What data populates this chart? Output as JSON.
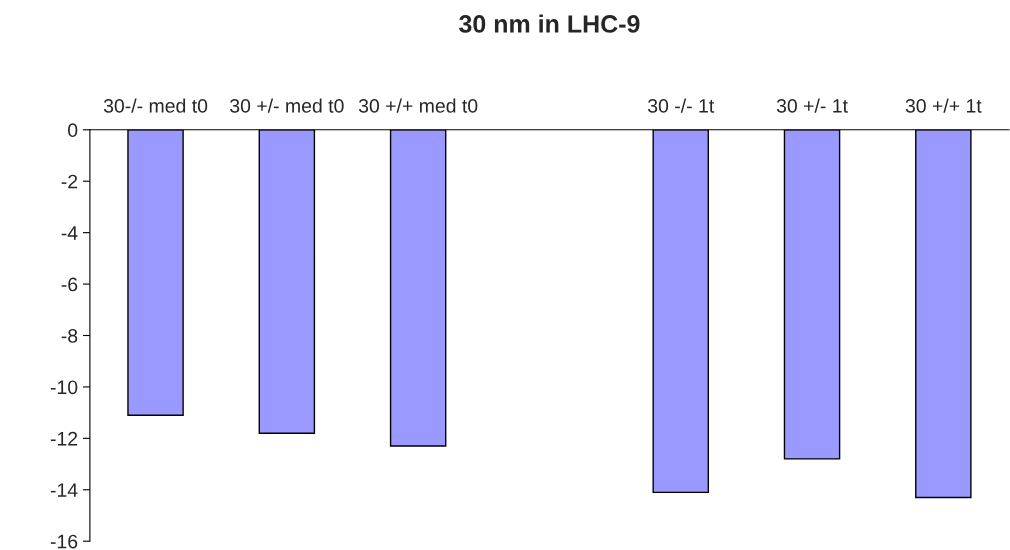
{
  "chart_data": {
    "type": "bar",
    "title": "30 nm in LHC-9",
    "categories": [
      "30-/- med t0",
      "30 +/- med t0",
      "30 +/+ med t0",
      null,
      "30 -/- 1t",
      "30 +/- 1t",
      "30 +/+ 1t"
    ],
    "values": [
      -11.1,
      -11.8,
      -12.3,
      null,
      -14.1,
      -12.8,
      -14.3
    ],
    "color": "#9999ff",
    "ylim": [
      -16,
      0
    ],
    "yticks": [
      0,
      -2,
      -4,
      -6,
      -8,
      -10,
      -12,
      -14,
      -16
    ],
    "grid": false
  }
}
